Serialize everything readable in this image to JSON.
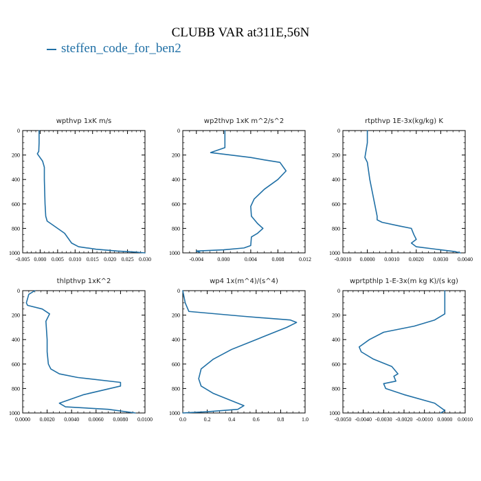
{
  "title": "CLUBB VAR at311E,56N",
  "legend": {
    "items": [
      {
        "label": "steffen_code_for_ben2",
        "color": "#1f6fa5"
      }
    ]
  },
  "chart_data": [
    {
      "type": "line",
      "title": "wpthvp  1xK m/s",
      "xlim": [
        -0.005,
        0.03
      ],
      "ylim": [
        0,
        1000
      ],
      "y_inverted": true,
      "xticks": [
        -0.005,
        0.0,
        0.005,
        0.01,
        0.015,
        0.02,
        0.025,
        0.03
      ],
      "xtick_labels": [
        "-0.005",
        "0.000",
        "0.005",
        "0.010",
        "0.015",
        "0.020",
        "0.025",
        "0.030"
      ],
      "yticks": [
        0,
        200,
        400,
        600,
        800,
        1000
      ],
      "ytick_labels": [
        "0",
        "200",
        "400",
        "600",
        "800",
        "1000"
      ],
      "series": [
        {
          "color": "#1f6fa5",
          "x": [
            -0.0003,
            -0.0003,
            -0.0004,
            -0.0008,
            0.0007,
            0.0012,
            0.0012,
            0.0013,
            0.0014,
            0.0016,
            0.002,
            0.003,
            0.005,
            0.007,
            0.008,
            0.009,
            0.011,
            0.016,
            0.022,
            0.028,
            0.03
          ],
          "y": [
            0,
            100,
            170,
            190,
            250,
            300,
            400,
            500,
            600,
            700,
            740,
            760,
            800,
            840,
            880,
            920,
            950,
            970,
            985,
            995,
            1000
          ]
        }
      ]
    },
    {
      "type": "line",
      "title": "wp2thvp  1xK m^2/s^2",
      "xlim": [
        -0.006,
        0.012
      ],
      "ylim": [
        0,
        1000
      ],
      "y_inverted": true,
      "xticks": [
        -0.004,
        0.0,
        0.004,
        0.008,
        0.012
      ],
      "xtick_labels": [
        "-0.004",
        "0.000",
        "0.004",
        "0.008",
        "0.012"
      ],
      "yticks": [
        0,
        200,
        400,
        600,
        800,
        1000
      ],
      "ytick_labels": [
        "0",
        "200",
        "400",
        "600",
        "800",
        "1000"
      ],
      "series": [
        {
          "color": "#1f6fa5",
          "x": [
            0.0002,
            0.0002,
            -0.0019,
            0.004,
            0.006,
            0.0083,
            0.0092,
            0.008,
            0.006,
            0.0045,
            0.004,
            0.0041,
            0.005,
            0.0058,
            0.005,
            0.0041,
            0.004,
            0.003,
            0.0,
            -0.004,
            -0.0035
          ],
          "y": [
            0,
            140,
            180,
            220,
            240,
            260,
            330,
            400,
            480,
            560,
            620,
            700,
            760,
            800,
            840,
            870,
            940,
            960,
            975,
            985,
            995
          ]
        }
      ]
    },
    {
      "type": "line",
      "title": "rtpthvp  1E-3x(kg/kg) K",
      "xlim": [
        -0.001,
        0.004
      ],
      "ylim": [
        0,
        1000
      ],
      "y_inverted": true,
      "xticks": [
        -0.001,
        0.0,
        0.001,
        0.002,
        0.003,
        0.004
      ],
      "xtick_labels": [
        "-0.0010",
        "0.0000",
        "0.0010",
        "0.0020",
        "0.0030",
        "0.0040"
      ],
      "yticks": [
        0,
        200,
        400,
        600,
        800,
        1000
      ],
      "ytick_labels": [
        "0",
        "200",
        "400",
        "600",
        "800",
        "1000"
      ],
      "series": [
        {
          "color": "#1f6fa5",
          "x": [
            0.0,
            0.0,
            -0.0001,
            0.0,
            0.0001,
            0.0002,
            0.0003,
            0.0004,
            0.0004,
            0.0006,
            0.0013,
            0.0018,
            0.0019,
            0.002,
            0.0018,
            0.002,
            0.003,
            0.0036,
            0.0038
          ],
          "y": [
            0,
            100,
            220,
            260,
            400,
            500,
            600,
            700,
            730,
            750,
            780,
            800,
            850,
            890,
            920,
            950,
            975,
            990,
            1000
          ]
        }
      ]
    },
    {
      "type": "line",
      "title": "thlpthvp  1xK^2",
      "xlim": [
        0.0,
        0.01
      ],
      "ylim": [
        0,
        1000
      ],
      "y_inverted": true,
      "xticks": [
        0.0,
        0.002,
        0.004,
        0.006,
        0.008,
        0.01
      ],
      "xtick_labels": [
        "0.0000",
        "0.0020",
        "0.0040",
        "0.0060",
        "0.0080",
        "0.0100"
      ],
      "yticks": [
        0,
        200,
        400,
        600,
        800,
        1000
      ],
      "ytick_labels": [
        "0",
        "200",
        "400",
        "600",
        "800",
        "1000"
      ],
      "series": [
        {
          "color": "#1f6fa5",
          "x": [
            0.001,
            0.0005,
            0.0003,
            0.0004,
            0.0016,
            0.0022,
            0.0019,
            0.002,
            0.002,
            0.0021,
            0.0023,
            0.003,
            0.0045,
            0.008,
            0.008,
            0.005,
            0.003,
            0.0035,
            0.007,
            0.0092
          ],
          "y": [
            0,
            30,
            100,
            120,
            150,
            190,
            250,
            400,
            500,
            600,
            640,
            680,
            710,
            750,
            780,
            850,
            920,
            950,
            970,
            1000
          ]
        }
      ]
    },
    {
      "type": "line",
      "title": "wp4  1x(m^4)/(s^4)",
      "xlim": [
        0.0,
        1.0
      ],
      "ylim": [
        0,
        1000
      ],
      "y_inverted": true,
      "xticks": [
        0.0,
        0.2,
        0.4,
        0.6,
        0.8,
        1.0
      ],
      "xtick_labels": [
        "0.0",
        "0.2",
        "0.4",
        "0.6",
        "0.8",
        "1.0"
      ],
      "yticks": [
        0,
        200,
        400,
        600,
        800,
        1000
      ],
      "ytick_labels": [
        "0",
        "200",
        "400",
        "600",
        "800",
        "1000"
      ],
      "series": [
        {
          "color": "#1f6fa5",
          "x": [
            0.0,
            0.02,
            0.05,
            0.5,
            0.88,
            0.93,
            0.85,
            0.6,
            0.4,
            0.25,
            0.15,
            0.13,
            0.15,
            0.25,
            0.4,
            0.5,
            0.45,
            0.2,
            0.03,
            0.0
          ],
          "y": [
            0,
            100,
            170,
            210,
            240,
            260,
            300,
            400,
            480,
            560,
            640,
            720,
            780,
            840,
            900,
            940,
            970,
            990,
            998,
            1000
          ]
        }
      ]
    },
    {
      "type": "line",
      "title": "wprtpthlp  1-E-3x(m kg K)/(s kg)",
      "xlim": [
        -0.005,
        0.001
      ],
      "ylim": [
        0,
        1000
      ],
      "y_inverted": true,
      "xticks": [
        -0.005,
        -0.004,
        -0.003,
        -0.002,
        -0.001,
        0.0,
        0.001
      ],
      "xtick_labels": [
        "-0.0050",
        "-0.0040",
        "-0.0030",
        "-0.0020",
        "-0.0010",
        "0.0000",
        "0.0010"
      ],
      "yticks": [
        0,
        200,
        400,
        600,
        800,
        1000
      ],
      "ytick_labels": [
        "0",
        "200",
        "400",
        "600",
        "800",
        "1000"
      ],
      "series": [
        {
          "color": "#1f6fa5",
          "x": [
            0.0,
            0.0,
            -0.0005,
            -0.0015,
            -0.003,
            -0.0037,
            -0.0042,
            -0.0041,
            -0.0035,
            -0.0026,
            -0.0023,
            -0.0025,
            -0.0024,
            -0.003,
            -0.0029,
            -0.002,
            -0.0005,
            0.0,
            -0.0002
          ],
          "y": [
            0,
            190,
            240,
            290,
            340,
            400,
            460,
            500,
            560,
            620,
            680,
            700,
            740,
            760,
            800,
            850,
            920,
            980,
            1000
          ]
        }
      ]
    }
  ]
}
